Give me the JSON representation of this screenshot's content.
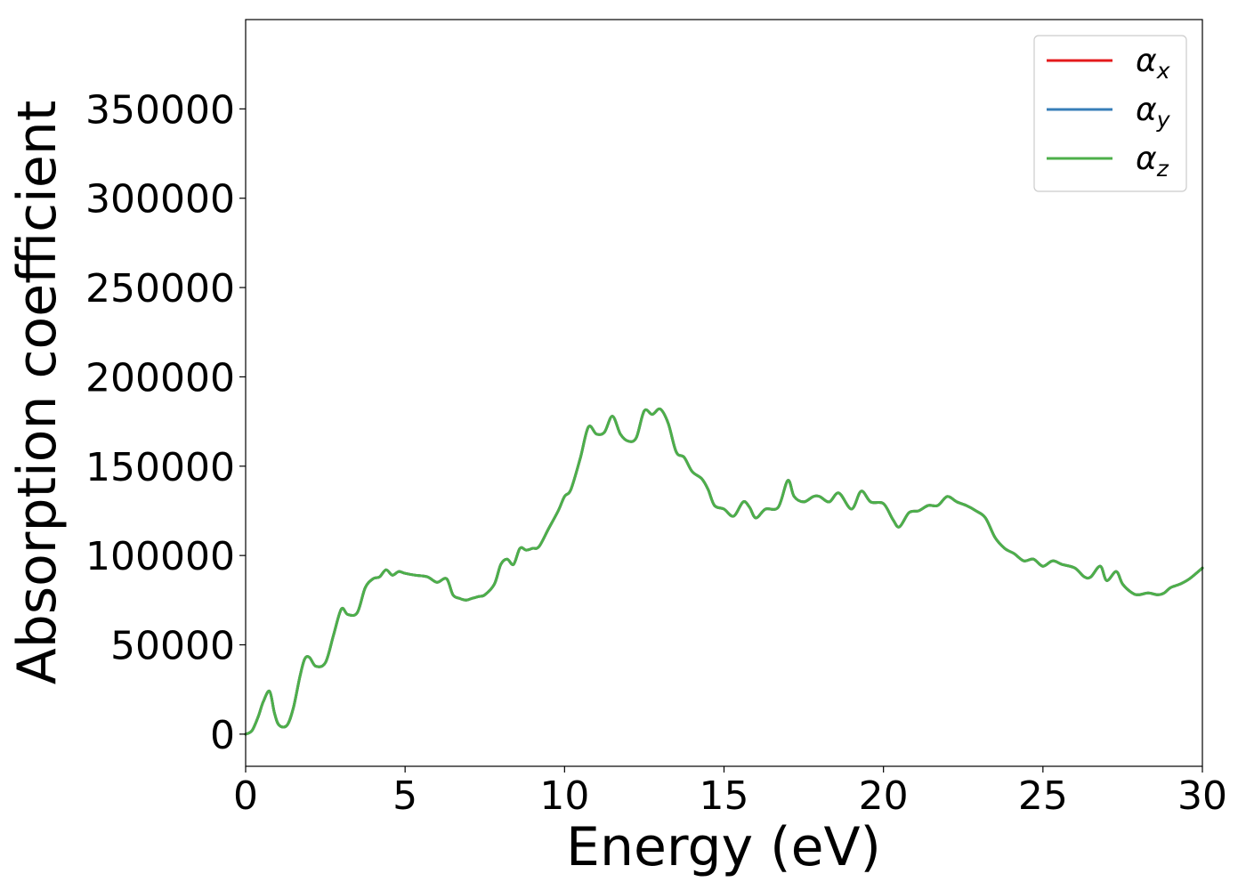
{
  "chart_data": {
    "type": "line",
    "title": "",
    "xlabel": "Energy (eV)",
    "ylabel": "Absorption coefficient",
    "xlim": [
      0,
      30
    ],
    "ylim": [
      -18000,
      400000
    ],
    "xticks": [
      0,
      5,
      10,
      15,
      20,
      25,
      30
    ],
    "yticks": [
      0,
      50000,
      100000,
      150000,
      200000,
      250000,
      300000,
      350000
    ],
    "grid": false,
    "legend_position": "top-right",
    "legend_symbol": "α",
    "series": [
      {
        "name": "α_x",
        "subscript": "x",
        "color": "#e41a1c"
      },
      {
        "name": "α_y",
        "subscript": "y",
        "color": "#377eb8"
      },
      {
        "name": "α_z",
        "subscript": "z",
        "color": "#4daf4a"
      }
    ],
    "x": [
      0,
      0.2,
      0.4,
      0.55,
      0.75,
      0.9,
      1.05,
      1.3,
      1.5,
      1.7,
      1.85,
      2.0,
      2.2,
      2.5,
      2.75,
      3.0,
      3.2,
      3.5,
      3.75,
      4.0,
      4.2,
      4.4,
      4.6,
      4.8,
      5.0,
      5.3,
      5.7,
      6.0,
      6.3,
      6.5,
      6.7,
      6.9,
      7.1,
      7.3,
      7.5,
      7.8,
      8.0,
      8.2,
      8.4,
      8.6,
      8.8,
      9.0,
      9.2,
      9.5,
      9.8,
      10.0,
      10.2,
      10.5,
      10.75,
      11.0,
      11.25,
      11.5,
      11.75,
      12.0,
      12.25,
      12.5,
      12.75,
      13.0,
      13.25,
      13.5,
      13.75,
      14.0,
      14.3,
      14.5,
      14.7,
      15.0,
      15.3,
      15.6,
      15.8,
      16.0,
      16.3,
      16.7,
      17.0,
      17.2,
      17.5,
      17.8,
      18.0,
      18.3,
      18.6,
      19.0,
      19.3,
      19.6,
      20.0,
      20.3,
      20.5,
      20.8,
      21.1,
      21.4,
      21.7,
      22.0,
      22.3,
      22.6,
      22.9,
      23.2,
      23.5,
      23.8,
      24.1,
      24.4,
      24.7,
      25.0,
      25.3,
      25.6,
      26.0,
      26.3,
      26.5,
      26.8,
      27.0,
      27.3,
      27.5,
      27.8,
      28.0,
      28.3,
      28.6,
      28.8,
      29.0,
      29.3,
      29.6,
      30.0
    ],
    "y": [
      0,
      2000,
      10000,
      18000,
      24000,
      12000,
      5000,
      5000,
      15000,
      32000,
      42000,
      43000,
      38000,
      40000,
      55000,
      70000,
      67000,
      68000,
      82000,
      87000,
      88000,
      92000,
      89000,
      91000,
      90000,
      89000,
      88000,
      85000,
      87000,
      78000,
      76000,
      75000,
      76000,
      77000,
      78000,
      84000,
      95000,
      98000,
      95000,
      104000,
      103000,
      104000,
      105000,
      115000,
      125000,
      133000,
      137000,
      155000,
      172000,
      168000,
      169000,
      178000,
      168000,
      164000,
      166000,
      181000,
      179000,
      182000,
      174000,
      158000,
      155000,
      147000,
      143000,
      137000,
      128000,
      126000,
      122000,
      130000,
      127000,
      121000,
      126000,
      127000,
      142000,
      133000,
      130000,
      133000,
      133000,
      130000,
      135000,
      126000,
      136000,
      130000,
      129000,
      120000,
      116000,
      124000,
      125000,
      128000,
      128000,
      133000,
      130000,
      128000,
      125000,
      121000,
      110000,
      104000,
      101000,
      97000,
      98000,
      94000,
      97000,
      95000,
      93000,
      88000,
      88000,
      94000,
      86000,
      91000,
      84000,
      79000,
      78000,
      79000,
      78000,
      79000,
      82000,
      84000,
      87000,
      93000
    ]
  }
}
